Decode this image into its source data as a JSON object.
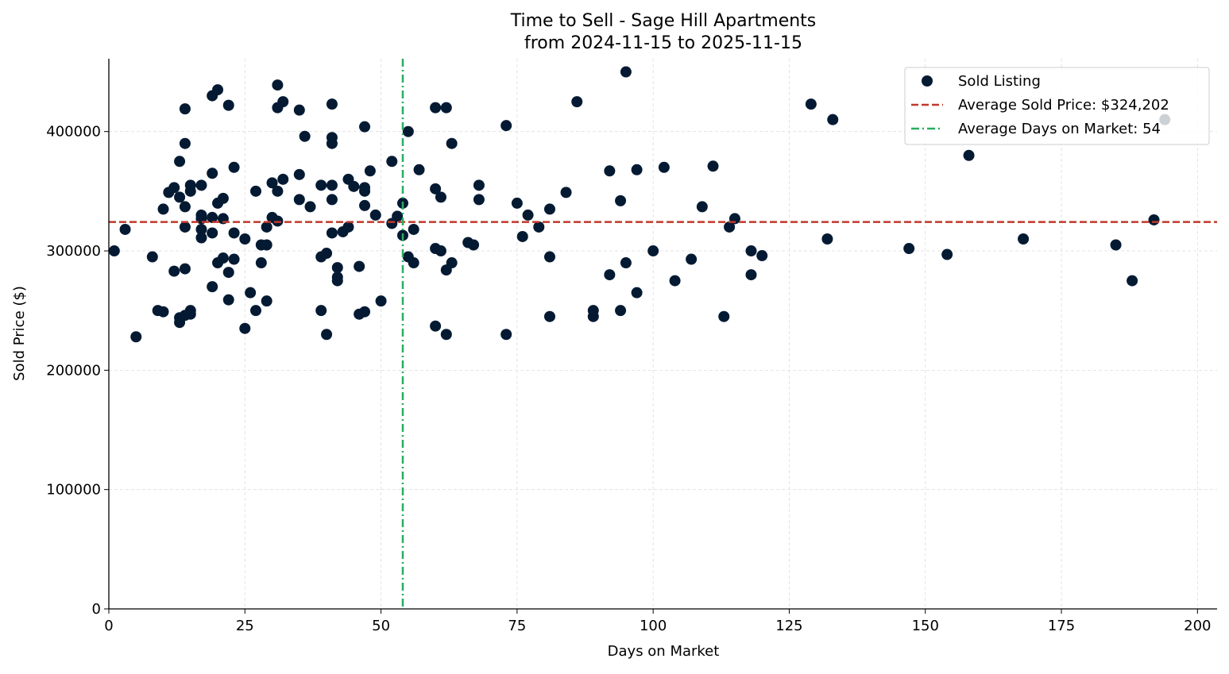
{
  "chart_data": {
    "type": "scatter",
    "title": "Time to Sell - Sage Hill Apartments",
    "subtitle": "from 2024-11-15 to 2025-11-15",
    "xlabel": "Days on Market",
    "ylabel": "Sold Price ($)",
    "xlim": [
      0,
      203.6
    ],
    "ylim": [
      0,
      461000
    ],
    "xticks": [
      0,
      25,
      50,
      75,
      100,
      125,
      150,
      175,
      200
    ],
    "yticks": [
      0,
      100000,
      200000,
      300000,
      400000
    ],
    "grid": true,
    "legend_position": "top-right",
    "legend": [
      "Sold Listing",
      "Average Sold Price: $324,202",
      "Average Days on Market: 54"
    ],
    "colors": {
      "points": "#041a33",
      "avg_price": "#c0392b",
      "avg_days": "#27ae60"
    },
    "avg_price": 324202,
    "avg_days": 54,
    "series": [
      {
        "name": "Sold Listing",
        "points": [
          [
            1,
            300000
          ],
          [
            3,
            318000
          ],
          [
            5,
            228000
          ],
          [
            8,
            295000
          ],
          [
            9,
            250000
          ],
          [
            10,
            335000
          ],
          [
            10,
            249000
          ],
          [
            11,
            349000
          ],
          [
            12,
            283000
          ],
          [
            12,
            353000
          ],
          [
            13,
            375000
          ],
          [
            13,
            345000
          ],
          [
            13,
            244000
          ],
          [
            13,
            240000
          ],
          [
            14,
            419000
          ],
          [
            14,
            390000
          ],
          [
            14,
            337000
          ],
          [
            14,
            320000
          ],
          [
            14,
            285000
          ],
          [
            14,
            246000
          ],
          [
            15,
            355000
          ],
          [
            15,
            350000
          ],
          [
            15,
            250000
          ],
          [
            15,
            247000
          ],
          [
            17,
            355000
          ],
          [
            17,
            330000
          ],
          [
            17,
            327000
          ],
          [
            17,
            318000
          ],
          [
            17,
            311000
          ],
          [
            19,
            430000
          ],
          [
            20,
            435000
          ],
          [
            19,
            365000
          ],
          [
            19,
            328000
          ],
          [
            19,
            315000
          ],
          [
            19,
            270000
          ],
          [
            20,
            340000
          ],
          [
            20,
            290000
          ],
          [
            21,
            344000
          ],
          [
            21,
            327000
          ],
          [
            21,
            294000
          ],
          [
            22,
            422000
          ],
          [
            22,
            282000
          ],
          [
            22,
            259000
          ],
          [
            23,
            370000
          ],
          [
            23,
            315000
          ],
          [
            23,
            293000
          ],
          [
            25,
            310000
          ],
          [
            25,
            235000
          ],
          [
            26,
            265000
          ],
          [
            27,
            350000
          ],
          [
            27,
            250000
          ],
          [
            28,
            305000
          ],
          [
            28,
            290000
          ],
          [
            29,
            320000
          ],
          [
            29,
            305000
          ],
          [
            29,
            258000
          ],
          [
            30,
            357000
          ],
          [
            30,
            328000
          ],
          [
            31,
            439000
          ],
          [
            31,
            420000
          ],
          [
            31,
            350000
          ],
          [
            31,
            325000
          ],
          [
            32,
            425000
          ],
          [
            32,
            360000
          ],
          [
            35,
            418000
          ],
          [
            35,
            364000
          ],
          [
            35,
            343000
          ],
          [
            36,
            396000
          ],
          [
            37,
            337000
          ],
          [
            39,
            355000
          ],
          [
            39,
            295000
          ],
          [
            39,
            250000
          ],
          [
            40,
            298000
          ],
          [
            40,
            230000
          ],
          [
            41,
            423000
          ],
          [
            41,
            395000
          ],
          [
            41,
            390000
          ],
          [
            41,
            355000
          ],
          [
            41,
            343000
          ],
          [
            41,
            315000
          ],
          [
            42,
            286000
          ],
          [
            42,
            278000
          ],
          [
            42,
            275000
          ],
          [
            43,
            316000
          ],
          [
            44,
            320000
          ],
          [
            44,
            360000
          ],
          [
            45,
            354000
          ],
          [
            46,
            287000
          ],
          [
            46,
            247000
          ],
          [
            47,
            404000
          ],
          [
            47,
            353000
          ],
          [
            47,
            350000
          ],
          [
            47,
            338000
          ],
          [
            47,
            249000
          ],
          [
            48,
            367000
          ],
          [
            49,
            330000
          ],
          [
            50,
            258000
          ],
          [
            52,
            375000
          ],
          [
            52,
            323000
          ],
          [
            53,
            329000
          ],
          [
            54,
            340000
          ],
          [
            54,
            313000
          ],
          [
            55,
            400000
          ],
          [
            55,
            295000
          ],
          [
            56,
            318000
          ],
          [
            56,
            290000
          ],
          [
            57,
            368000
          ],
          [
            60,
            420000
          ],
          [
            60,
            352000
          ],
          [
            60,
            302000
          ],
          [
            60,
            237000
          ],
          [
            61,
            345000
          ],
          [
            61,
            300000
          ],
          [
            62,
            420000
          ],
          [
            62,
            284000
          ],
          [
            62,
            230000
          ],
          [
            63,
            390000
          ],
          [
            63,
            290000
          ],
          [
            66,
            307000
          ],
          [
            67,
            305000
          ],
          [
            68,
            355000
          ],
          [
            68,
            343000
          ],
          [
            73,
            405000
          ],
          [
            73,
            230000
          ],
          [
            75,
            340000
          ],
          [
            76,
            312000
          ],
          [
            77,
            330000
          ],
          [
            79,
            320000
          ],
          [
            81,
            335000
          ],
          [
            81,
            295000
          ],
          [
            81,
            245000
          ],
          [
            84,
            349000
          ],
          [
            86,
            425000
          ],
          [
            89,
            250000
          ],
          [
            89,
            245000
          ],
          [
            92,
            367000
          ],
          [
            92,
            280000
          ],
          [
            94,
            342000
          ],
          [
            94,
            250000
          ],
          [
            95,
            450000
          ],
          [
            95,
            290000
          ],
          [
            97,
            368000
          ],
          [
            97,
            265000
          ],
          [
            100,
            300000
          ],
          [
            102,
            370000
          ],
          [
            104,
            275000
          ],
          [
            107,
            293000
          ],
          [
            109,
            337000
          ],
          [
            111,
            371000
          ],
          [
            113,
            245000
          ],
          [
            114,
            320000
          ],
          [
            115,
            327000
          ],
          [
            118,
            300000
          ],
          [
            118,
            280000
          ],
          [
            120,
            296000
          ],
          [
            129,
            423000
          ],
          [
            132,
            310000
          ],
          [
            133,
            410000
          ],
          [
            147,
            302000
          ],
          [
            154,
            297000
          ],
          [
            158,
            380000
          ],
          [
            168,
            310000
          ],
          [
            185,
            305000
          ],
          [
            188,
            275000
          ],
          [
            192,
            326000
          ],
          [
            194,
            410000
          ]
        ]
      }
    ]
  }
}
